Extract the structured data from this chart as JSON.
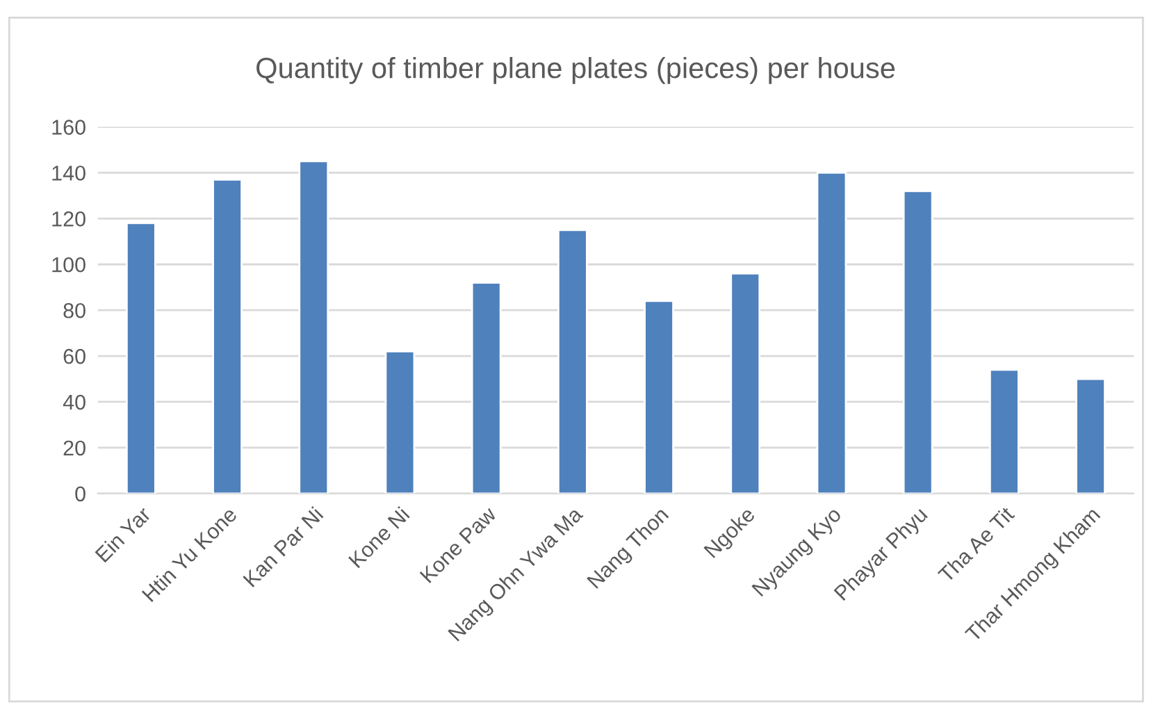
{
  "chart_data": {
    "type": "bar",
    "title": "Quantity of timber plane plates (pieces) per house",
    "categories": [
      "Ein Yar",
      "Htin Yu Kone",
      "Kan Par Ni",
      "Kone Ni",
      "Kone Paw",
      "Nang Ohn Ywa Ma",
      "Nang Thon",
      "Ngoke",
      "Nyaung Kyo",
      "Phayar Phyu",
      "Tha Ae Tit",
      "Thar Hmong Kham"
    ],
    "values": [
      118,
      137,
      145,
      62,
      92,
      115,
      84,
      96,
      140,
      132,
      54,
      50
    ],
    "color": "#4f81bd",
    "ylim": [
      0,
      160
    ],
    "yticks": [
      0,
      20,
      40,
      60,
      80,
      100,
      120,
      140,
      160
    ],
    "grid": "y",
    "legend": false
  }
}
